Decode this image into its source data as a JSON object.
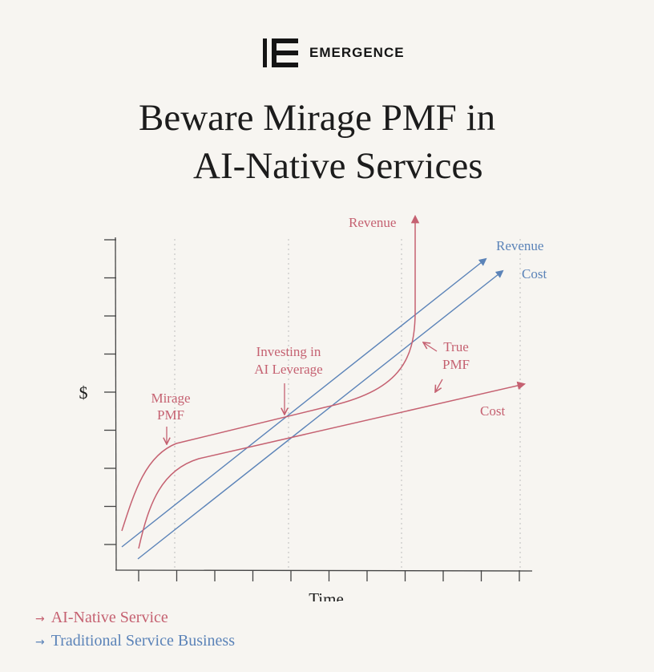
{
  "brand": {
    "logo_icon": "emergence-logo-icon",
    "name": "EMERGENCE"
  },
  "title": {
    "line1": "Beware Mirage PMF in",
    "line2": "AI-Native Services"
  },
  "colors": {
    "ai_native": "#c56171",
    "traditional": "#5b83b8",
    "axis": "#444444",
    "gridline": "#bdbdbd",
    "text": "#1c1c1c"
  },
  "chart_data": {
    "type": "line",
    "xlabel": "Time",
    "ylabel": "$",
    "grid": "vertical dotted lines at annotated moments",
    "series": [
      {
        "name": "Revenue",
        "group": "AI-Native Service",
        "shape": "fast early rise, long linear plateau, then vertical spike"
      },
      {
        "name": "Cost",
        "group": "AI-Native Service",
        "shape": "fast early rise, then gentle linear growth"
      },
      {
        "name": "Revenue",
        "group": "Traditional Service Business",
        "shape": "straight linear growth"
      },
      {
        "name": "Cost",
        "group": "Traditional Service Business",
        "shape": "straight linear growth, parallel below revenue"
      }
    ],
    "annotations": [
      {
        "lines": [
          "Mirage",
          "PMF"
        ]
      },
      {
        "lines": [
          "Investing in",
          "AI Leverage"
        ]
      },
      {
        "lines": [
          "True",
          "PMF"
        ]
      }
    ]
  },
  "legend": [
    {
      "label": "AI-Native Service",
      "icon": "arrow-right-icon"
    },
    {
      "label": "Traditional Service Business",
      "icon": "arrow-right-icon"
    }
  ]
}
